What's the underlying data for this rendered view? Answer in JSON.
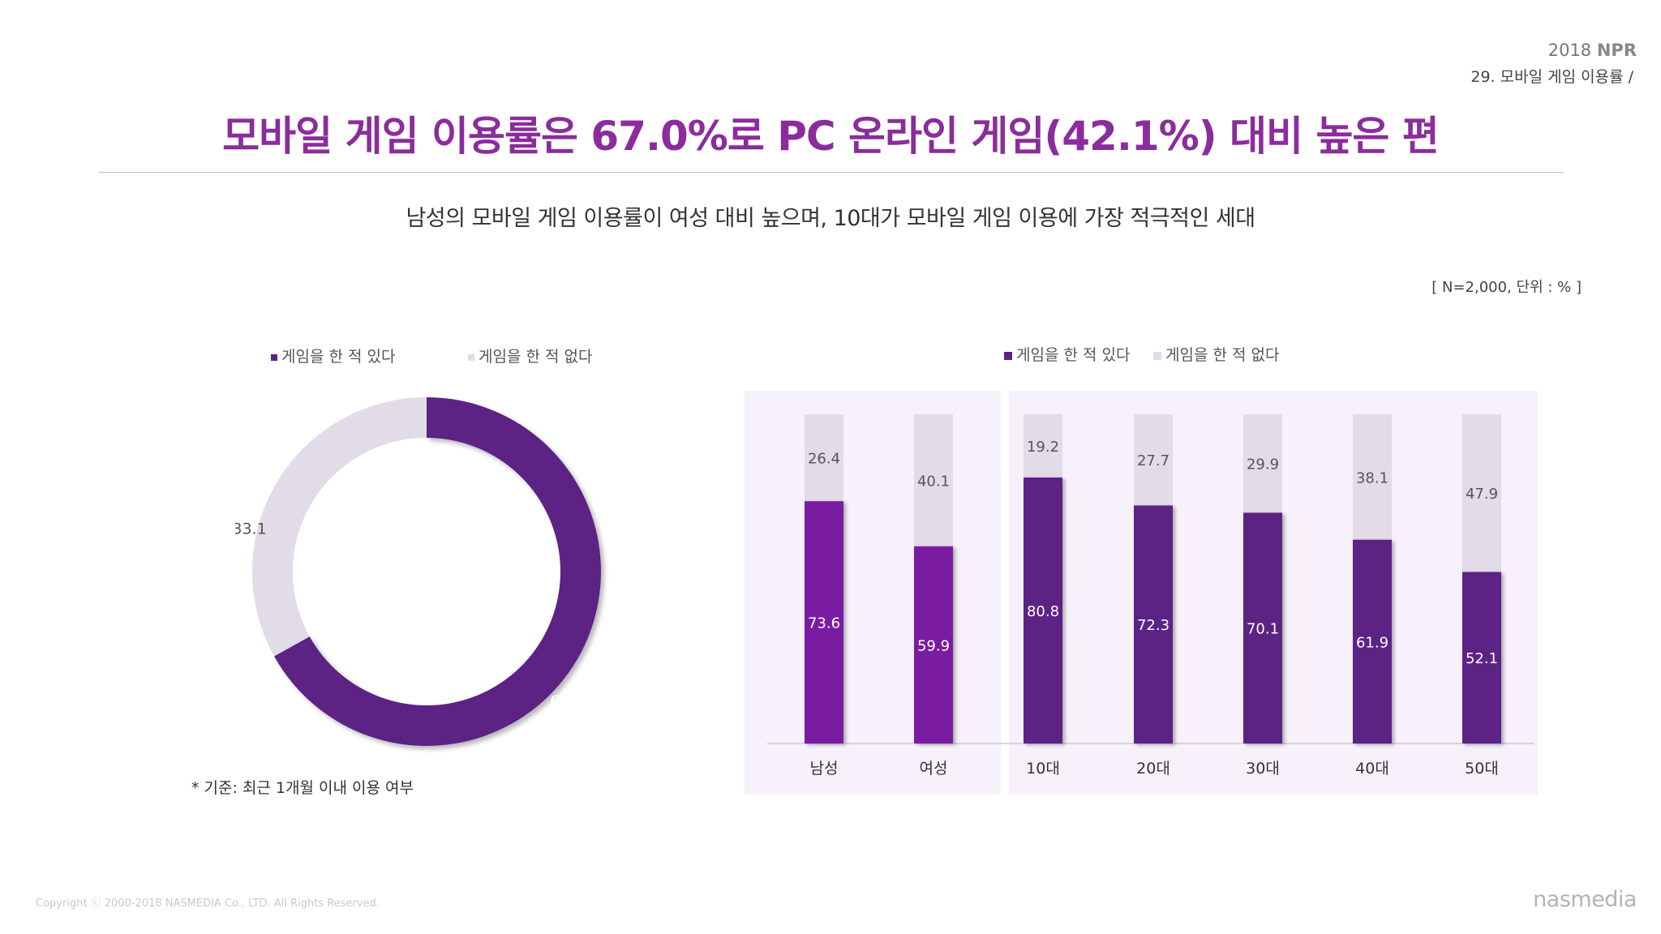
{
  "header": {
    "year": "2018",
    "brand": "NPR",
    "section": "29. 모바일 게임 이용률 /"
  },
  "title": "모바일 게임 이용률은 67.0%로 PC 온라인 게임(42.1%) 대비 높은 편",
  "subtitle": "남성의 모바일 게임 이용률이 여성 대비 높으며, 10대가 모바일 게임 이용에 가장 적극적인 세대",
  "note": "[ N=2,000, 단위 : % ]",
  "footnote": "* 기준: 최근 1개월 이내 이용 여부",
  "footer": {
    "copyright": "Copyright ⓒ 2000-2018  NASMEDIA Co., LTD. All Rights Reserved.",
    "logo_text": "nasmedia"
  },
  "colors": {
    "played": "#5b2384",
    "played_gender": "#7a1fa2",
    "not_played": "#e2dbe8",
    "title": "#8b2c9c"
  },
  "chart_data": [
    {
      "type": "pie",
      "variant": "donut",
      "legend": [
        "게임을 한 적 있다",
        "게임을 한 적 없다"
      ],
      "slices": [
        {
          "name": "게임을 한 적 있다",
          "value": 67.0,
          "label": "67.0"
        },
        {
          "name": "게임을 한 적 없다",
          "value": 33.1,
          "label": "33.1"
        }
      ]
    },
    {
      "type": "bar",
      "stacked": true,
      "legend": [
        "게임을 한 적 있다",
        "게임을 한 적 없다"
      ],
      "categories": [
        "남성",
        "여성",
        "10대",
        "20대",
        "30대",
        "40대",
        "50대"
      ],
      "series": [
        {
          "name": "게임을 한 적 있다",
          "values": [
            73.6,
            59.9,
            80.8,
            72.3,
            70.1,
            61.9,
            52.1
          ],
          "labels": [
            "73.6",
            "59.9",
            "80.8",
            "72.3",
            "70.1",
            "61.9",
            "52.1"
          ]
        },
        {
          "name": "게임을 한 적 없다",
          "values": [
            26.4,
            40.1,
            19.2,
            27.7,
            29.9,
            38.1,
            47.9
          ],
          "labels": [
            "26.4",
            "40.1",
            "19.2",
            "27.7",
            "29.9",
            "38.1",
            "47.9"
          ]
        }
      ],
      "ylim": [
        0,
        100
      ]
    }
  ]
}
